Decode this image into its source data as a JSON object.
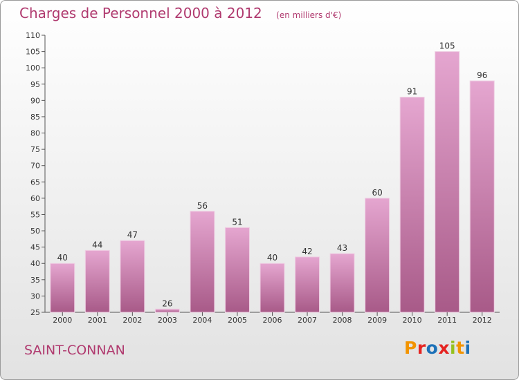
{
  "header": {
    "title": "Charges de Personnel 2000 à 2012",
    "subtitle": "(en milliers d'€)"
  },
  "commune": "SAINT-CONNAN",
  "logo": {
    "letters": [
      "P",
      "r",
      "o",
      "x",
      "i",
      "t",
      "i"
    ],
    "colors": [
      "#f29400",
      "#e52421",
      "#1d71b8",
      "#e52421",
      "#95c11f",
      "#f29400",
      "#1d71b8"
    ]
  },
  "colors": {
    "text_accent": "#b03a6f",
    "bar_top": "#e5a6d0",
    "bar_bottom": "#a85a88",
    "bar_edge": "#efd0e4"
  },
  "chart_data": {
    "type": "bar",
    "categories": [
      "2000",
      "2001",
      "2002",
      "2003",
      "2004",
      "2005",
      "2006",
      "2007",
      "2008",
      "2009",
      "2010",
      "2011",
      "2012"
    ],
    "values": [
      40,
      44,
      47,
      26,
      56,
      51,
      40,
      42,
      43,
      60,
      91,
      105,
      96
    ],
    "ylim": [
      25,
      110
    ],
    "yticks": [
      25,
      30,
      35,
      40,
      45,
      50,
      55,
      60,
      65,
      70,
      75,
      80,
      85,
      90,
      95,
      100,
      105,
      110
    ],
    "grid": false,
    "data_labels": true
  }
}
